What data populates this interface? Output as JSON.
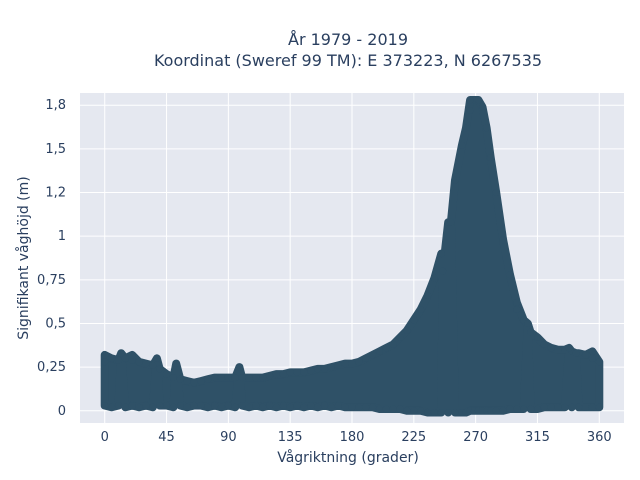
{
  "chart_data": {
    "type": "scatter",
    "title_line1": "År 1979 - 2019",
    "title_line2": "Koordinat (Sweref 99 TM): E 373223, N 6267535",
    "xlabel": "Vågriktning (grader)",
    "ylabel": "Signifikant våghöjd (m)",
    "xlim": [
      -18,
      378
    ],
    "ylim": [
      -0.07,
      1.82
    ],
    "x_ticks": [
      {
        "value": 0,
        "label": "0"
      },
      {
        "value": 45,
        "label": "45"
      },
      {
        "value": 90,
        "label": "90"
      },
      {
        "value": 135,
        "label": "135"
      },
      {
        "value": 180,
        "label": "180"
      },
      {
        "value": 225,
        "label": "225"
      },
      {
        "value": 270,
        "label": "270"
      },
      {
        "value": 315,
        "label": "315"
      },
      {
        "value": 360,
        "label": "360"
      }
    ],
    "y_ticks": [
      {
        "value": 0,
        "label": "0"
      },
      {
        "value": 0.25,
        "label": "0,25"
      },
      {
        "value": 0.5,
        "label": "0,5"
      },
      {
        "value": 0.75,
        "label": "0,75"
      },
      {
        "value": 1,
        "label": "1"
      },
      {
        "value": 1.25,
        "label": "1,2"
      },
      {
        "value": 1.5,
        "label": "1,5"
      },
      {
        "value": 1.75,
        "label": "1,8"
      }
    ],
    "grid": true,
    "marker_color": "#2f5167",
    "plot_background": "#e5e8f0",
    "series": [
      {
        "points": [
          [
            0,
            0.03
          ],
          [
            0,
            0.28
          ],
          [
            5,
            0.02
          ],
          [
            5,
            0.3
          ],
          [
            10,
            0.03
          ],
          [
            10,
            0.29
          ],
          [
            15,
            0.02
          ],
          [
            15,
            0.3
          ],
          [
            20,
            0.03
          ],
          [
            20,
            0.29
          ],
          [
            25,
            0.02
          ],
          [
            25,
            0.28
          ],
          [
            30,
            0.03
          ],
          [
            30,
            0.27
          ],
          [
            35,
            0.02
          ],
          [
            35,
            0.26
          ],
          [
            40,
            0.03
          ],
          [
            40,
            0.24
          ],
          [
            45,
            0.03
          ],
          [
            45,
            0.21
          ],
          [
            50,
            0.02
          ],
          [
            50,
            0.19
          ],
          [
            55,
            0.03
          ],
          [
            55,
            0.18
          ],
          [
            60,
            0.02
          ],
          [
            60,
            0.17
          ],
          [
            65,
            0.03
          ],
          [
            65,
            0.16
          ],
          [
            70,
            0.03
          ],
          [
            70,
            0.17
          ],
          [
            75,
            0.02
          ],
          [
            75,
            0.18
          ],
          [
            80,
            0.03
          ],
          [
            80,
            0.19
          ],
          [
            85,
            0.02
          ],
          [
            85,
            0.19
          ],
          [
            90,
            0.03
          ],
          [
            90,
            0.19
          ],
          [
            95,
            0.02
          ],
          [
            95,
            0.19
          ],
          [
            100,
            0.03
          ],
          [
            100,
            0.19
          ],
          [
            105,
            0.02
          ],
          [
            105,
            0.19
          ],
          [
            110,
            0.03
          ],
          [
            110,
            0.19
          ],
          [
            115,
            0.02
          ],
          [
            115,
            0.19
          ],
          [
            120,
            0.03
          ],
          [
            120,
            0.2
          ],
          [
            125,
            0.02
          ],
          [
            125,
            0.21
          ],
          [
            130,
            0.03
          ],
          [
            130,
            0.21
          ],
          [
            135,
            0.02
          ],
          [
            135,
            0.22
          ],
          [
            140,
            0.03
          ],
          [
            140,
            0.22
          ],
          [
            145,
            0.02
          ],
          [
            145,
            0.22
          ],
          [
            150,
            0.03
          ],
          [
            150,
            0.23
          ],
          [
            155,
            0.02
          ],
          [
            155,
            0.24
          ],
          [
            160,
            0.03
          ],
          [
            160,
            0.24
          ],
          [
            165,
            0.02
          ],
          [
            165,
            0.25
          ],
          [
            170,
            0.03
          ],
          [
            170,
            0.26
          ],
          [
            175,
            0.02
          ],
          [
            175,
            0.27
          ],
          [
            180,
            0.02
          ],
          [
            180,
            0.27
          ],
          [
            185,
            0.02
          ],
          [
            185,
            0.28
          ],
          [
            190,
            0.02
          ],
          [
            190,
            0.3
          ],
          [
            195,
            0.02
          ],
          [
            195,
            0.32
          ],
          [
            200,
            0.01
          ],
          [
            200,
            0.34
          ],
          [
            205,
            0.01
          ],
          [
            205,
            0.36
          ],
          [
            210,
            0.01
          ],
          [
            210,
            0.38
          ],
          [
            215,
            0.01
          ],
          [
            215,
            0.42
          ],
          [
            220,
            0.0
          ],
          [
            220,
            0.46
          ],
          [
            225,
            0.0
          ],
          [
            225,
            0.52
          ],
          [
            230,
            0.0
          ],
          [
            230,
            0.58
          ],
          [
            235,
            -0.01
          ],
          [
            235,
            0.66
          ],
          [
            240,
            -0.01
          ],
          [
            240,
            0.76
          ],
          [
            245,
            -0.01
          ],
          [
            245,
            0.9
          ],
          [
            250,
            -0.01
          ],
          [
            250,
            1.08
          ],
          [
            255,
            -0.01
          ],
          [
            255,
            1.32
          ],
          [
            260,
            -0.01
          ],
          [
            260,
            1.52
          ],
          [
            263,
            -0.01
          ],
          [
            263,
            1.62
          ],
          [
            266,
            0.0
          ],
          [
            266,
            1.72
          ],
          [
            269,
            0.0
          ],
          [
            269,
            1.78
          ],
          [
            272,
            0.0
          ],
          [
            272,
            1.78
          ],
          [
            275,
            0.0
          ],
          [
            275,
            1.74
          ],
          [
            278,
            0.0
          ],
          [
            278,
            1.62
          ],
          [
            281,
            0.0
          ],
          [
            281,
            1.45
          ],
          [
            285,
            0.0
          ],
          [
            285,
            1.25
          ],
          [
            290,
            0.0
          ],
          [
            290,
            0.98
          ],
          [
            295,
            0.01
          ],
          [
            295,
            0.78
          ],
          [
            300,
            0.01
          ],
          [
            300,
            0.62
          ],
          [
            305,
            0.01
          ],
          [
            305,
            0.52
          ],
          [
            310,
            0.01
          ],
          [
            310,
            0.45
          ],
          [
            315,
            0.01
          ],
          [
            315,
            0.42
          ],
          [
            320,
            0.02
          ],
          [
            320,
            0.38
          ],
          [
            325,
            0.02
          ],
          [
            325,
            0.36
          ],
          [
            330,
            0.02
          ],
          [
            330,
            0.35
          ],
          [
            335,
            0.02
          ],
          [
            335,
            0.35
          ],
          [
            340,
            0.02
          ],
          [
            340,
            0.34
          ],
          [
            345,
            0.02
          ],
          [
            345,
            0.33
          ],
          [
            350,
            0.02
          ],
          [
            350,
            0.32
          ],
          [
            355,
            0.02
          ],
          [
            355,
            0.3
          ],
          [
            360,
            0.02
          ],
          [
            360,
            0.28
          ],
          [
            0,
            0.32
          ],
          [
            12,
            0.33
          ],
          [
            20,
            0.32
          ],
          [
            38,
            0.3
          ],
          [
            52,
            0.27
          ],
          [
            98,
            0.25
          ],
          [
            246,
            0.8
          ],
          [
            266,
            1.78
          ],
          [
            252,
            1.08
          ],
          [
            300,
            0.58
          ],
          [
            308,
            0.5
          ],
          [
            338,
            0.36
          ],
          [
            343,
            0.33
          ],
          [
            355,
            0.34
          ]
        ]
      }
    ]
  }
}
